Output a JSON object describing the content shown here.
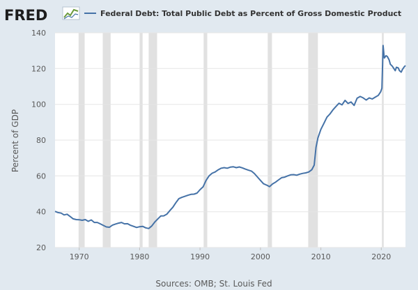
{
  "logo": {
    "text": "FRED",
    "icon": "trend-line-icon"
  },
  "source": "Sources: OMB; St. Louis Fed",
  "colors": {
    "background": "#e1e9f0",
    "plot_background": "#ffffff",
    "series": "#4572a7",
    "recession": "#e1e1e1",
    "grid": "#e6e6e6"
  },
  "chart_data": {
    "type": "line",
    "title": "",
    "xlabel": "",
    "ylabel": "Percent of GDP",
    "xlim": [
      1966,
      2024
    ],
    "ylim": [
      20,
      140
    ],
    "x_ticks": [
      1970,
      1980,
      1990,
      2000,
      2010,
      2020
    ],
    "y_ticks": [
      20,
      40,
      60,
      80,
      100,
      120,
      140
    ],
    "grid": "horizontal",
    "legend_position": "top",
    "recessions": [
      [
        1969.9,
        1970.9
      ],
      [
        1973.9,
        1975.2
      ],
      [
        1980.0,
        1980.5
      ],
      [
        1981.5,
        1982.9
      ],
      [
        1990.6,
        1991.2
      ],
      [
        2001.2,
        2001.9
      ],
      [
        2007.9,
        2009.5
      ],
      [
        2020.1,
        2020.4
      ]
    ],
    "series": [
      {
        "name": "Federal Debt: Total Public Debt as Percent of Gross Domestic Product",
        "color": "#4572a7",
        "points": [
          [
            1966.0,
            40.2
          ],
          [
            1966.5,
            39.5
          ],
          [
            1967.0,
            39.2
          ],
          [
            1967.5,
            38.2
          ],
          [
            1968.0,
            38.6
          ],
          [
            1968.5,
            37.3
          ],
          [
            1969.0,
            36.0
          ],
          [
            1969.5,
            35.6
          ],
          [
            1970.0,
            35.5
          ],
          [
            1970.5,
            35.2
          ],
          [
            1971.0,
            35.6
          ],
          [
            1971.5,
            34.6
          ],
          [
            1972.0,
            35.4
          ],
          [
            1972.5,
            34.0
          ],
          [
            1973.0,
            34.0
          ],
          [
            1973.5,
            33.2
          ],
          [
            1974.0,
            32.3
          ],
          [
            1974.5,
            31.5
          ],
          [
            1975.0,
            31.3
          ],
          [
            1975.5,
            32.5
          ],
          [
            1976.0,
            33.1
          ],
          [
            1976.5,
            33.6
          ],
          [
            1977.0,
            34.0
          ],
          [
            1977.5,
            33.2
          ],
          [
            1978.0,
            33.3
          ],
          [
            1978.5,
            32.4
          ],
          [
            1979.0,
            31.8
          ],
          [
            1979.5,
            31.2
          ],
          [
            1980.0,
            31.6
          ],
          [
            1980.5,
            31.8
          ],
          [
            1981.0,
            31.0
          ],
          [
            1981.5,
            30.6
          ],
          [
            1982.0,
            32.0
          ],
          [
            1982.5,
            34.2
          ],
          [
            1983.0,
            35.9
          ],
          [
            1983.5,
            37.6
          ],
          [
            1984.0,
            37.7
          ],
          [
            1984.5,
            38.6
          ],
          [
            1985.0,
            40.6
          ],
          [
            1985.5,
            42.5
          ],
          [
            1986.0,
            45.0
          ],
          [
            1986.5,
            47.3
          ],
          [
            1987.0,
            48.0
          ],
          [
            1987.5,
            48.6
          ],
          [
            1988.0,
            49.2
          ],
          [
            1988.5,
            49.7
          ],
          [
            1989.0,
            49.8
          ],
          [
            1989.5,
            50.4
          ],
          [
            1990.0,
            52.3
          ],
          [
            1990.5,
            53.9
          ],
          [
            1991.0,
            57.5
          ],
          [
            1991.5,
            60.0
          ],
          [
            1992.0,
            61.5
          ],
          [
            1992.5,
            62.2
          ],
          [
            1993.0,
            63.4
          ],
          [
            1993.5,
            64.3
          ],
          [
            1994.0,
            64.6
          ],
          [
            1994.5,
            64.3
          ],
          [
            1995.0,
            64.9
          ],
          [
            1995.5,
            65.1
          ],
          [
            1996.0,
            64.6
          ],
          [
            1996.5,
            65.0
          ],
          [
            1997.0,
            64.5
          ],
          [
            1997.5,
            63.8
          ],
          [
            1998.0,
            63.2
          ],
          [
            1998.5,
            62.7
          ],
          [
            1999.0,
            61.3
          ],
          [
            1999.5,
            59.4
          ],
          [
            2000.0,
            57.5
          ],
          [
            2000.5,
            55.6
          ],
          [
            2001.0,
            54.9
          ],
          [
            2001.5,
            54.0
          ],
          [
            2002.0,
            55.5
          ],
          [
            2002.5,
            56.5
          ],
          [
            2003.0,
            57.8
          ],
          [
            2003.5,
            59.0
          ],
          [
            2004.0,
            59.3
          ],
          [
            2004.5,
            60.0
          ],
          [
            2005.0,
            60.6
          ],
          [
            2005.5,
            60.7
          ],
          [
            2006.0,
            60.4
          ],
          [
            2006.5,
            61.0
          ],
          [
            2007.0,
            61.4
          ],
          [
            2007.5,
            61.7
          ],
          [
            2008.0,
            62.2
          ],
          [
            2008.5,
            63.5
          ],
          [
            2008.9,
            66.0
          ],
          [
            2009.2,
            76.0
          ],
          [
            2009.5,
            81.2
          ],
          [
            2010.0,
            86.0
          ],
          [
            2010.5,
            89.3
          ],
          [
            2011.0,
            92.8
          ],
          [
            2011.5,
            94.6
          ],
          [
            2012.0,
            96.9
          ],
          [
            2012.5,
            98.8
          ],
          [
            2013.0,
            100.6
          ],
          [
            2013.5,
            99.7
          ],
          [
            2014.0,
            102.2
          ],
          [
            2014.5,
            100.5
          ],
          [
            2015.0,
            101.3
          ],
          [
            2015.5,
            99.4
          ],
          [
            2016.0,
            103.4
          ],
          [
            2016.5,
            104.4
          ],
          [
            2017.0,
            103.6
          ],
          [
            2017.5,
            102.4
          ],
          [
            2018.0,
            103.6
          ],
          [
            2018.5,
            103.0
          ],
          [
            2019.0,
            104.0
          ],
          [
            2019.5,
            105.0
          ],
          [
            2019.9,
            107.0
          ],
          [
            2020.1,
            109.0
          ],
          [
            2020.3,
            132.9
          ],
          [
            2020.5,
            125.9
          ],
          [
            2020.8,
            127.2
          ],
          [
            2021.0,
            126.7
          ],
          [
            2021.3,
            124.8
          ],
          [
            2021.5,
            122.4
          ],
          [
            2021.8,
            121.4
          ],
          [
            2022.0,
            120.4
          ],
          [
            2022.3,
            118.8
          ],
          [
            2022.5,
            120.7
          ],
          [
            2022.8,
            120.4
          ],
          [
            2023.0,
            118.9
          ],
          [
            2023.3,
            118.0
          ],
          [
            2023.5,
            119.5
          ],
          [
            2023.8,
            121.0
          ],
          [
            2024.0,
            121.7
          ]
        ]
      }
    ]
  }
}
